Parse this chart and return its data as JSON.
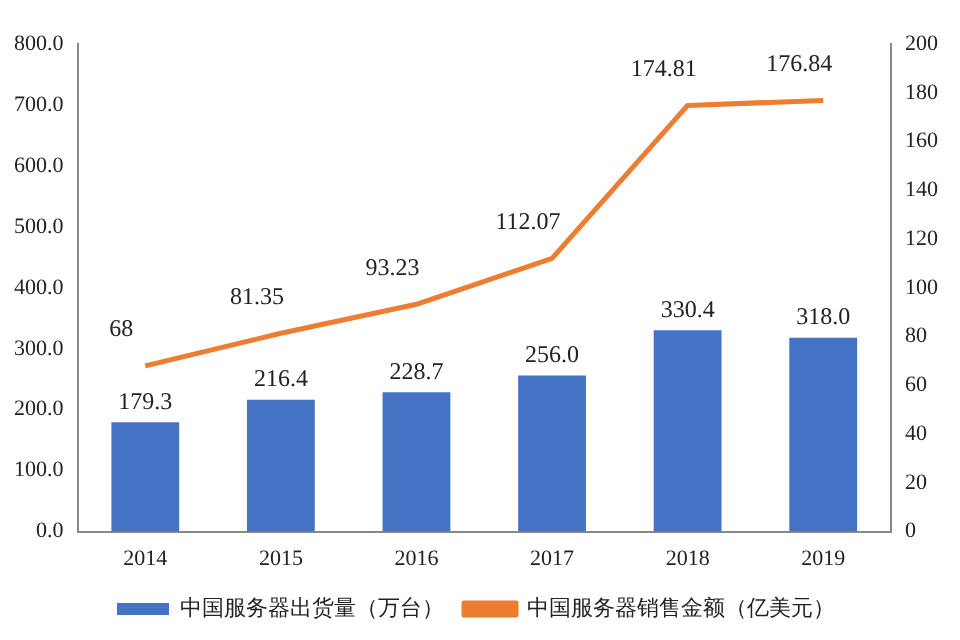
{
  "chart_data": {
    "type": "bar",
    "categories": [
      "2014",
      "2015",
      "2016",
      "2017",
      "2018",
      "2019"
    ],
    "series": [
      {
        "name": "中国服务器出货量（万台）",
        "color": "#4472c4",
        "values": [
          179.3,
          216.4,
          228.7,
          256.0,
          330.4,
          318.0
        ],
        "value_labels": [
          "179.3",
          "216.4",
          "228.7",
          "256.0",
          "330.4",
          "318.0"
        ]
      },
      {
        "name": "中国服务器销售金额（亿美元）",
        "type": "line",
        "axis": "y2",
        "color": "#ed7d31",
        "values": [
          68,
          81.35,
          93.23,
          112.07,
          174.81,
          176.84
        ],
        "value_labels": [
          "68",
          "81.35",
          "93.23",
          "112.07",
          "174.81",
          "176.84"
        ]
      }
    ],
    "ylim": [
      0,
      800
    ],
    "yticks": [
      {
        "value": 0,
        "label": "0.0"
      },
      {
        "value": 100,
        "label": "100.0"
      },
      {
        "value": 200,
        "label": "200.0"
      },
      {
        "value": 300,
        "label": "300.0"
      },
      {
        "value": 400,
        "label": "400.0"
      },
      {
        "value": 500,
        "label": "500.0"
      },
      {
        "value": 600,
        "label": "600.0"
      },
      {
        "value": 700,
        "label": "700.0"
      },
      {
        "value": 800,
        "label": "800.0"
      }
    ],
    "y2lim": [
      0,
      200
    ],
    "y2ticks": [
      0,
      20,
      40,
      60,
      80,
      100,
      120,
      140,
      160,
      180,
      200
    ],
    "grid": false,
    "legend": "bottom",
    "marker": "none"
  }
}
